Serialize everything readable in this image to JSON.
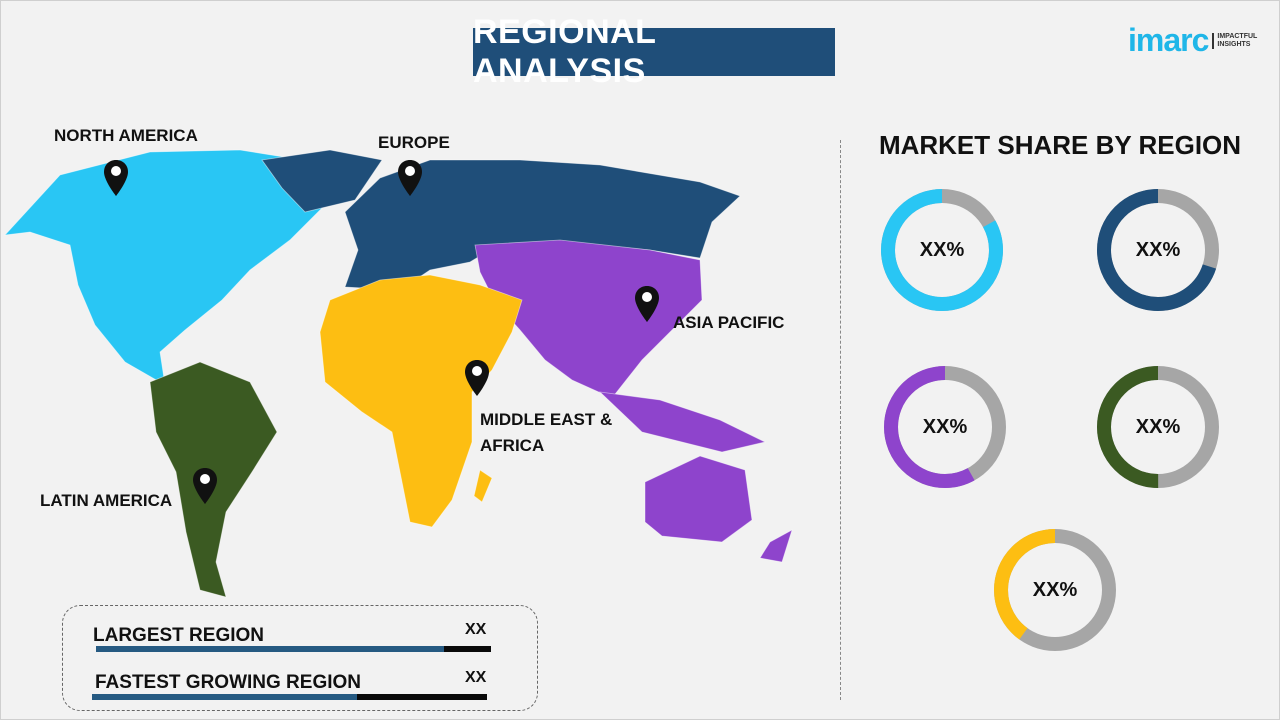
{
  "title": "REGIONAL ANALYSIS",
  "logo": {
    "word": "imarc",
    "tagline_1": "IMPACTFUL",
    "tagline_2": "INSIGHTS"
  },
  "map": {
    "regions": [
      {
        "label": "NORTH AMERICA",
        "color": "#29c6f4"
      },
      {
        "label": "EUROPE",
        "color": "#1f4e79"
      },
      {
        "label": "ASIA PACIFIC",
        "color": "#8e44cc"
      },
      {
        "label": "MIDDLE EAST & AFRICA",
        "color": "#fdbe12"
      },
      {
        "label": "LATIN AMERICA",
        "color": "#3b5a22"
      }
    ],
    "pin_icon": "map-pin-icon"
  },
  "market_share": {
    "title": "MARKET SHARE BY REGION",
    "remainder_color": "#a6a6a6",
    "donuts": [
      {
        "region": "North America",
        "value_label": "XX%",
        "color": "#29c6f4",
        "fill_fraction": 0.83
      },
      {
        "region": "Europe",
        "value_label": "XX%",
        "color": "#1f4e79",
        "fill_fraction": 0.7
      },
      {
        "region": "Asia Pacific",
        "value_label": "XX%",
        "color": "#8e44cc",
        "fill_fraction": 0.58
      },
      {
        "region": "Latin America",
        "value_label": "XX%",
        "color": "#3b5a22",
        "fill_fraction": 0.5
      },
      {
        "region": "Middle East & Africa",
        "value_label": "XX%",
        "color": "#fdbe12",
        "fill_fraction": 0.4
      }
    ]
  },
  "summary": {
    "rows": [
      {
        "label": "LARGEST REGION",
        "value": "XX",
        "bar_fraction": 0.88
      },
      {
        "label": "FASTEST GROWING REGION",
        "value": "XX",
        "bar_fraction": 0.67
      }
    ]
  }
}
